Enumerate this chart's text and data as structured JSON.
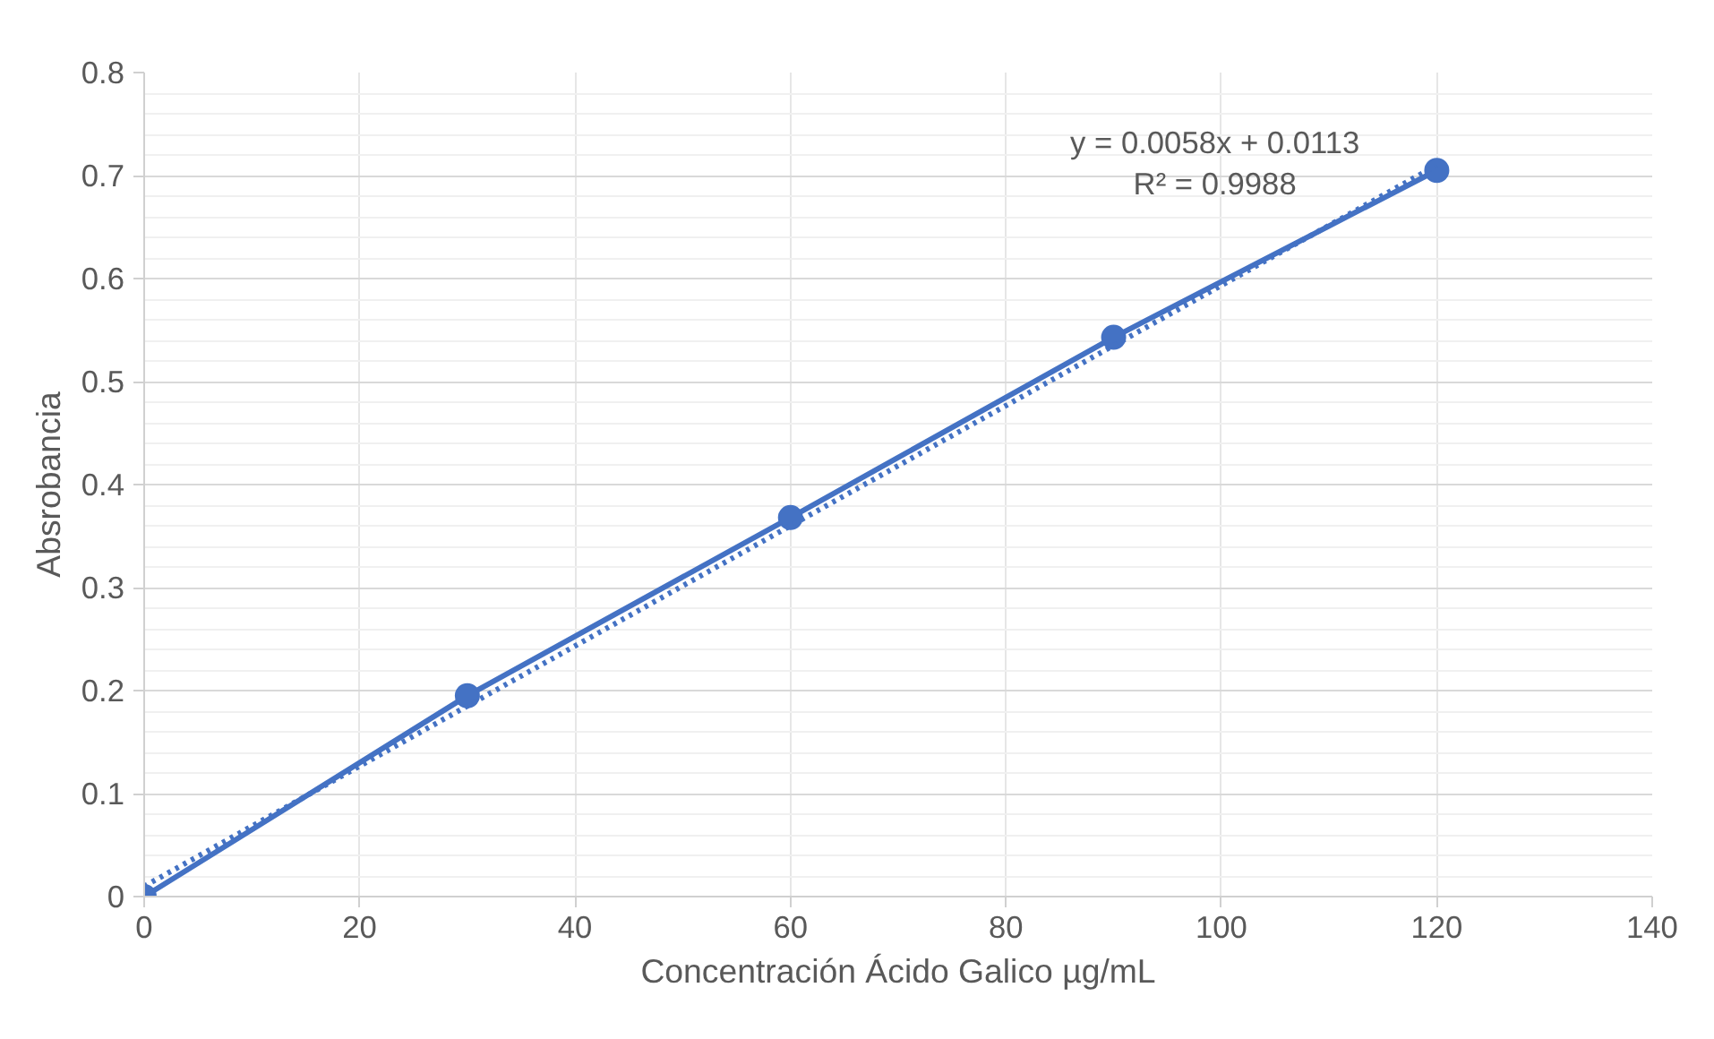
{
  "chart_data": {
    "type": "line",
    "xlabel": "Concentración Ácido Galico µg/mL",
    "ylabel": "Absrobancia",
    "x": [
      0,
      30,
      60,
      90,
      120
    ],
    "series": [
      {
        "color": "#4472c4",
        "values": [
          0,
          0.195,
          0.368,
          0.543,
          0.705
        ],
        "marker": "circle",
        "line_style": "solid"
      },
      {
        "type": "line",
        "color": "#4472c4",
        "x": [
          0,
          120
        ],
        "values": [
          0.01,
          0.71
        ],
        "marker": "none",
        "line_style": "dotted"
      }
    ],
    "xlim": [
      0,
      140
    ],
    "xticks": [
      0,
      20,
      40,
      60,
      80,
      100,
      120,
      140
    ],
    "ylim": [
      0,
      0.8
    ],
    "yticks": [
      0,
      0.1,
      0.2,
      0.3,
      0.4,
      0.5,
      0.6,
      0.7,
      0.8
    ],
    "grid": true,
    "annotations": [
      "y = 0.0058x + 0.0113",
      "R² = 0.9988"
    ]
  }
}
